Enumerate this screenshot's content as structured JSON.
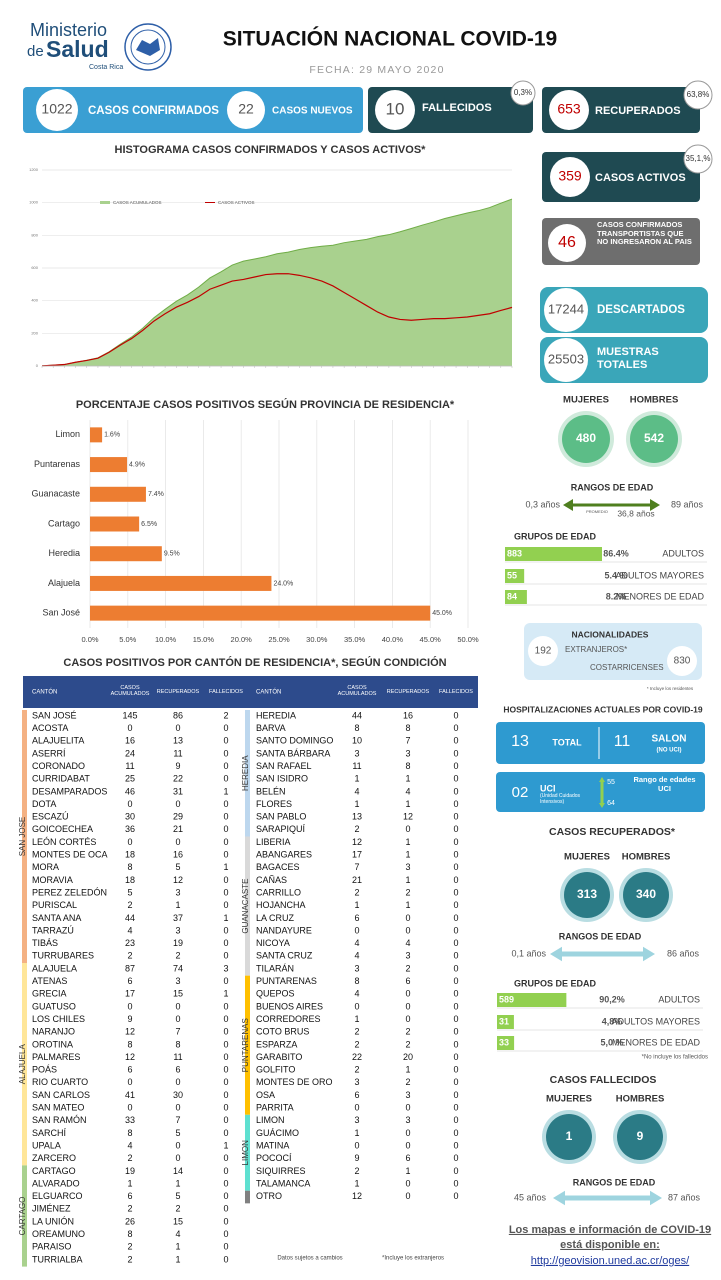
{
  "header": {
    "logo": [
      "Ministerio",
      "de",
      "Salud",
      "Costa Rica"
    ],
    "title": "SITUACIÓN NACIONAL COVID-19",
    "date": "FECHA: 29 MAYO 2020"
  },
  "summary": {
    "confirmed": {
      "value": 1022,
      "label": "CASOS CONFIRMADOS"
    },
    "new": {
      "value": 22,
      "label": "CASOS NUEVOS"
    },
    "deaths": {
      "value": 10,
      "label": "FALLECIDOS",
      "share": "0,3%"
    },
    "recovered": {
      "value": 653,
      "label": "RECUPERADOS",
      "share": "63,8%"
    },
    "active": {
      "value": 359,
      "label": "CASOS ACTIVOS",
      "share": "35,1,%"
    },
    "truckers": {
      "value": 46,
      "label": "CASOS CONFIRMADOS TRANSPORTISTAS QUE NO INGRESARON AL PAIS"
    },
    "discarded": {
      "value": 17244,
      "label": "DESCARTADOS"
    },
    "samples": {
      "value": 25503,
      "label": "MUESTRAS TOTALES"
    }
  },
  "chart_data": [
    {
      "type": "area",
      "title": "HISTOGRAMA CASOS CONFIRMADOS Y CASOS ACTIVOS*",
      "categories": [
        null,
        null,
        null,
        null,
        null,
        null,
        null,
        null,
        null,
        null,
        null,
        null,
        null,
        null,
        null,
        null,
        null,
        null,
        null,
        null,
        null,
        null,
        null,
        null,
        null,
        null,
        null,
        null,
        null,
        null,
        null,
        null,
        null,
        null,
        null,
        null,
        null,
        null,
        null,
        null,
        null,
        null,
        null
      ],
      "series": [
        {
          "name": "CASOS ACUMULADOS",
          "color": "#a9d18e",
          "values": [
            1,
            5,
            9,
            23,
            35,
            50,
            87,
            134,
            177,
            231,
            295,
            347,
            396,
            435,
            483,
            539,
            577,
            618,
            642,
            655,
            669,
            687,
            697,
            713,
            725,
            733,
            739,
            755,
            765,
            775,
            792,
            804,
            822,
            842,
            863,
            882,
            903,
            920,
            937,
            951,
            970,
            997,
            1022
          ]
        },
        {
          "name": "CASOS ACTIVOS",
          "color": "#c00000",
          "values": [
            1,
            5,
            9,
            23,
            34,
            48,
            84,
            128,
            168,
            218,
            275,
            320,
            360,
            390,
            425,
            470,
            495,
            520,
            530,
            545,
            560,
            565,
            565,
            555,
            540,
            520,
            490,
            450,
            410,
            370,
            330,
            300,
            285,
            280,
            285,
            290,
            290,
            295,
            300,
            310,
            320,
            340,
            359
          ]
        }
      ],
      "ylim": [
        0,
        1200
      ],
      "yticks": [
        0,
        200,
        400,
        600,
        800,
        1000,
        1200
      ],
      "grid": true
    },
    {
      "type": "hbar",
      "title": "PORCENTAJE CASOS POSITIVOS SEGÚN PROVINCIA DE RESIDENCIA*",
      "categories": [
        "Limon",
        "Puntarenas",
        "Guanacaste",
        "Cartago",
        "Heredia",
        "Alajuela",
        "San José"
      ],
      "values": [
        1.6,
        4.9,
        7.4,
        6.5,
        9.5,
        24.0,
        45.0
      ],
      "value_labels": [
        "1.6%",
        "4.9%",
        "7.4%",
        "6.5%",
        "9.5%",
        "24.0%",
        "45.0%"
      ],
      "color": "#ed7d31",
      "xlim": [
        0,
        50
      ],
      "xticks": [
        {
          "value": 0,
          "label": "0.0%"
        },
        {
          "value": 5,
          "label": "5.0%"
        },
        {
          "value": 10,
          "label": "10.0%"
        },
        {
          "value": 15,
          "label": "15.0%"
        },
        {
          "value": 20,
          "label": "20.0%"
        },
        {
          "value": 25,
          "label": "25.0%"
        },
        {
          "value": 30,
          "label": "30.0%"
        },
        {
          "value": 35,
          "label": "35.0%"
        },
        {
          "value": 40,
          "label": "40.0%"
        },
        {
          "value": 45,
          "label": "45.0%"
        },
        {
          "value": 50,
          "label": "50.0%"
        }
      ],
      "grid": true
    }
  ],
  "canton_table": {
    "title": "CASOS POSITIVOS POR CANTÓN DE RESIDENCIA*, SEGÚN CONDICIÓN",
    "columns": [
      "CANTÓN",
      "CASOS ACUMULADOS",
      "RECUPERADOS",
      "FALLECIDOS"
    ],
    "left": [
      {
        "province": "SAN JOSE",
        "color": "#f4b183",
        "rows": [
          [
            "SAN JOSÉ",
            145,
            86,
            2
          ],
          [
            "ACOSTA",
            0,
            0,
            0
          ],
          [
            "ALAJUELITA",
            16,
            13,
            0
          ],
          [
            "ASERRÍ",
            24,
            11,
            0
          ],
          [
            "CORONADO",
            11,
            9,
            0
          ],
          [
            "CURRIDABAT",
            25,
            22,
            0
          ],
          [
            "DESAMPARADOS",
            46,
            31,
            1
          ],
          [
            "DOTA",
            0,
            0,
            0
          ],
          [
            "ESCAZÚ",
            30,
            29,
            0
          ],
          [
            "GOICOECHEA",
            36,
            21,
            0
          ],
          [
            "LEÓN CORTÉS",
            0,
            0,
            0
          ],
          [
            "MONTES DE OCA",
            18,
            16,
            0
          ],
          [
            "MORA",
            8,
            5,
            1
          ],
          [
            "MORAVIA",
            18,
            12,
            0
          ],
          [
            "PEREZ ZELEDÓN",
            5,
            3,
            0
          ],
          [
            "PURISCAL",
            2,
            1,
            0
          ],
          [
            "SANTA ANA",
            44,
            37,
            1
          ],
          [
            "TARRAZÚ",
            4,
            3,
            0
          ],
          [
            "TIBÁS",
            23,
            19,
            0
          ],
          [
            "TURRUBARES",
            2,
            2,
            0
          ]
        ]
      },
      {
        "province": "ALAJUELA",
        "color": "#ffe699",
        "rows": [
          [
            "ALAJUELA",
            87,
            74,
            3
          ],
          [
            "ATENAS",
            6,
            3,
            0
          ],
          [
            "GRECIA",
            17,
            15,
            1
          ],
          [
            "GUATUSO",
            0,
            0,
            0
          ],
          [
            "LOS CHILES",
            9,
            0,
            0
          ],
          [
            "NARANJO",
            12,
            7,
            0
          ],
          [
            "OROTINA",
            8,
            8,
            0
          ],
          [
            "PALMARES",
            12,
            11,
            0
          ],
          [
            "POÁS",
            6,
            6,
            0
          ],
          [
            "RIO CUARTO",
            0,
            0,
            0
          ],
          [
            "SAN CARLOS",
            41,
            30,
            0
          ],
          [
            "SAN MATEO",
            0,
            0,
            0
          ],
          [
            "SAN RAMÓN",
            33,
            7,
            0
          ],
          [
            "SARCHÍ",
            8,
            5,
            0
          ],
          [
            "UPALA",
            4,
            0,
            1
          ],
          [
            "ZARCERO",
            2,
            0,
            0
          ]
        ]
      },
      {
        "province": "CARTAGO",
        "color": "#a9d18e",
        "rows": [
          [
            "CARTAGO",
            19,
            14,
            0
          ],
          [
            "ALVARADO",
            1,
            1,
            0
          ],
          [
            "ELGUARCO",
            6,
            5,
            0
          ],
          [
            "JIMÉNEZ",
            2,
            2,
            0
          ],
          [
            "LA UNIÓN",
            26,
            15,
            0
          ],
          [
            "OREAMUNO",
            8,
            4,
            0
          ],
          [
            "PARAISO",
            2,
            1,
            0
          ],
          [
            "TURRIALBA",
            2,
            1,
            0
          ]
        ]
      }
    ],
    "right": [
      {
        "province": "HEREDIA",
        "color": "#bdd7ee",
        "rows": [
          [
            "HEREDIA",
            44,
            16,
            0
          ],
          [
            "BARVA",
            8,
            8,
            0
          ],
          [
            "SANTO DOMINGO",
            10,
            7,
            0
          ],
          [
            "SANTA BÁRBARA",
            3,
            3,
            0
          ],
          [
            "SAN RAFAEL",
            11,
            8,
            0
          ],
          [
            "SAN ISIDRO",
            1,
            1,
            0
          ],
          [
            "BELÉN",
            4,
            4,
            0
          ],
          [
            "FLORES",
            1,
            1,
            0
          ],
          [
            "SAN PABLO",
            13,
            12,
            0
          ],
          [
            "SARAPIQUÍ",
            2,
            0,
            0
          ]
        ]
      },
      {
        "province": "GUANACASTE",
        "color": "#d9d9d9",
        "rows": [
          [
            "LIBERIA",
            12,
            1,
            0
          ],
          [
            "ABANGARES",
            17,
            1,
            0
          ],
          [
            "BAGACES",
            7,
            3,
            0
          ],
          [
            "CAÑAS",
            21,
            1,
            0
          ],
          [
            "CARRILLO",
            2,
            2,
            0
          ],
          [
            "HOJANCHA",
            1,
            1,
            0
          ],
          [
            "LA CRUZ",
            6,
            0,
            0
          ],
          [
            "NANDAYURE",
            0,
            0,
            0
          ],
          [
            "NICOYA",
            4,
            4,
            0
          ],
          [
            "SANTA CRUZ",
            4,
            3,
            0
          ],
          [
            "TILARÁN",
            3,
            2,
            0
          ]
        ]
      },
      {
        "province": "PUNTARENAS",
        "color": "#ffc000",
        "rows": [
          [
            "PUNTARENAS",
            8,
            6,
            0
          ],
          [
            "QUEPOS",
            4,
            0,
            0
          ],
          [
            "BUENOS AIRES",
            0,
            0,
            0
          ],
          [
            "CORREDORES",
            1,
            0,
            0
          ],
          [
            "COTO BRUS",
            2,
            2,
            0
          ],
          [
            "ESPARZA",
            2,
            2,
            0
          ],
          [
            "GARABITO",
            22,
            20,
            0
          ],
          [
            "GOLFITO",
            2,
            1,
            0
          ],
          [
            "MONTES DE ORO",
            3,
            2,
            0
          ],
          [
            "OSA",
            6,
            3,
            0
          ],
          [
            "PARRITA",
            0,
            0,
            0
          ]
        ]
      },
      {
        "province": "LIMON",
        "color": "#5ee0d0",
        "rows": [
          [
            "LIMON",
            3,
            3,
            0
          ],
          [
            "GUÁCIMO",
            1,
            0,
            0
          ],
          [
            "MATINA",
            0,
            0,
            0
          ],
          [
            "POCOCÍ",
            9,
            6,
            0
          ],
          [
            "SIQUIRRES",
            2,
            1,
            0
          ],
          [
            "TALAMANCA",
            1,
            0,
            0
          ]
        ]
      },
      {
        "color": "#808080",
        "rows": [
          [
            "OTRO",
            12,
            0,
            0
          ]
        ]
      }
    ],
    "notes": [
      "Datos sujetos a cambios",
      "*Incluye los extranjeros"
    ]
  },
  "confirmed_profile": {
    "women": {
      "label": "MUJERES",
      "value": 480
    },
    "men": {
      "label": "HOMBRES",
      "value": 542
    },
    "age_range": {
      "title": "RANGOS DE EDAD",
      "min": "0,3 años",
      "average_label": "PROMEDIO",
      "average": "36,8 años",
      "max": "89 años"
    },
    "age_groups": {
      "title": "GRUPOS DE EDAD",
      "groups": [
        {
          "count": 883,
          "share": "86.4%",
          "label": "ADULTOS"
        },
        {
          "count": 55,
          "share": "5.4 %",
          "label": "ADULTOS MAYORES"
        },
        {
          "count": 84,
          "share": "8.2%",
          "label": "MENORES DE EDAD"
        }
      ]
    }
  },
  "nationalities": {
    "title": "NACIONALIDADES",
    "foreign": {
      "value": 192,
      "label": "EXTRANJEROS*"
    },
    "local": {
      "value": 830,
      "label": "COSTARRICENSES"
    },
    "note": "* Incluye los residentes"
  },
  "hospital": {
    "title": "HOSPITALIZACIONES ACTUALES POR COVID-19",
    "total": {
      "value": 13,
      "label": "TOTAL"
    },
    "ward": {
      "value": 11,
      "label": "SALON",
      "sub": "(NO UCI)"
    },
    "icu": {
      "value": "02",
      "label": "UCI",
      "sub": "(Unidad Cuidados Intensivos)",
      "age_min": 55,
      "age_max": 64,
      "range_label": "Rango de edades UCI"
    }
  },
  "recovered_profile": {
    "title": "CASOS RECUPERADOS*",
    "women": {
      "label": "MUJERES",
      "value": 313
    },
    "men": {
      "label": "HOMBRES",
      "value": 340
    },
    "age_range": {
      "title": "RANGOS DE EDAD",
      "min": "0,1 años",
      "max": "86 años"
    },
    "age_groups": {
      "title": "GRUPOS DE EDAD",
      "groups": [
        {
          "count": 589,
          "share": "90,2%",
          "label": "ADULTOS"
        },
        {
          "count": 31,
          "share": "4,8%",
          "label": "ADULTOS MAYORES"
        },
        {
          "count": 33,
          "share": "5,0 %",
          "label": "MENORES DE EDAD"
        }
      ]
    },
    "note": "*No incluye los fallecidos"
  },
  "deaths_profile": {
    "title": "CASOS FALLECIDOS",
    "women": {
      "label": "MUJERES",
      "value": 1
    },
    "men": {
      "label": "HOMBRES",
      "value": 9
    },
    "age_range": {
      "title": "RANGOS DE EDAD",
      "min": "45 años",
      "max": "87 años"
    }
  },
  "footer": {
    "lines": [
      "Los mapas e información de COVID-19",
      "está disponible en:"
    ],
    "url": "http://geovision.uned.ac.cr/oges/"
  }
}
